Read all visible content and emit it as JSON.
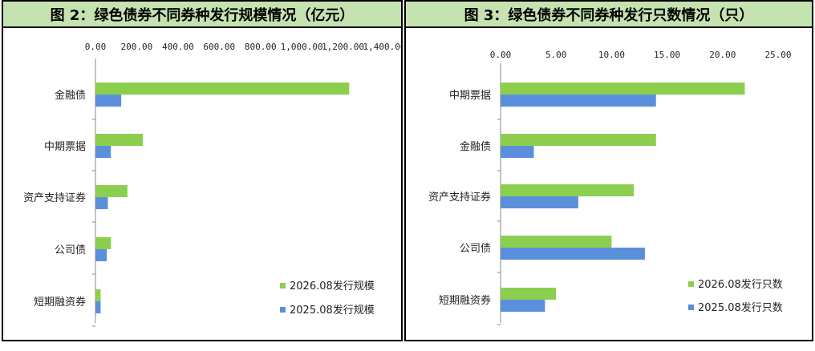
{
  "colors": {
    "series_2026": "#8ccf4f",
    "series_2025": "#5b8fdb",
    "title_bg": "#c5e3b1"
  },
  "chart_data": [
    {
      "type": "bar",
      "title": "图 2：绿色债券不同券种发行规模情况（亿元）",
      "categories": [
        "金融债",
        "中期票据",
        "资产支持证券",
        "公司债",
        "短期融资券"
      ],
      "series": [
        {
          "name": "2026.08发行规模",
          "values": [
            1230,
            230,
            155,
            75,
            25
          ]
        },
        {
          "name": "2025.08发行规模",
          "values": [
            125,
            75,
            60,
            55,
            25
          ]
        }
      ],
      "xlim": [
        0,
        1400
      ],
      "xticks": [
        "0.00",
        "200.00",
        "400.00",
        "600.00",
        "800.00",
        "1,000.00",
        "1,200.00",
        "1,400.00"
      ],
      "legend": "bottom-right"
    },
    {
      "type": "bar",
      "title": "图 3：绿色债券不同券种发行只数情况（只）",
      "categories": [
        "中期票据",
        "金融债",
        "资产支持证券",
        "公司债",
        "短期融资券"
      ],
      "series": [
        {
          "name": "2026.08发行只数",
          "values": [
            22,
            14,
            12,
            10,
            5
          ]
        },
        {
          "name": "2025.08发行只数",
          "values": [
            14,
            3,
            7,
            13,
            4
          ]
        }
      ],
      "xlim": [
        0,
        25
      ],
      "xticks": [
        "0.00",
        "5.00",
        "10.00",
        "15.00",
        "20.00",
        "25.00"
      ],
      "legend": "bottom-right"
    }
  ]
}
